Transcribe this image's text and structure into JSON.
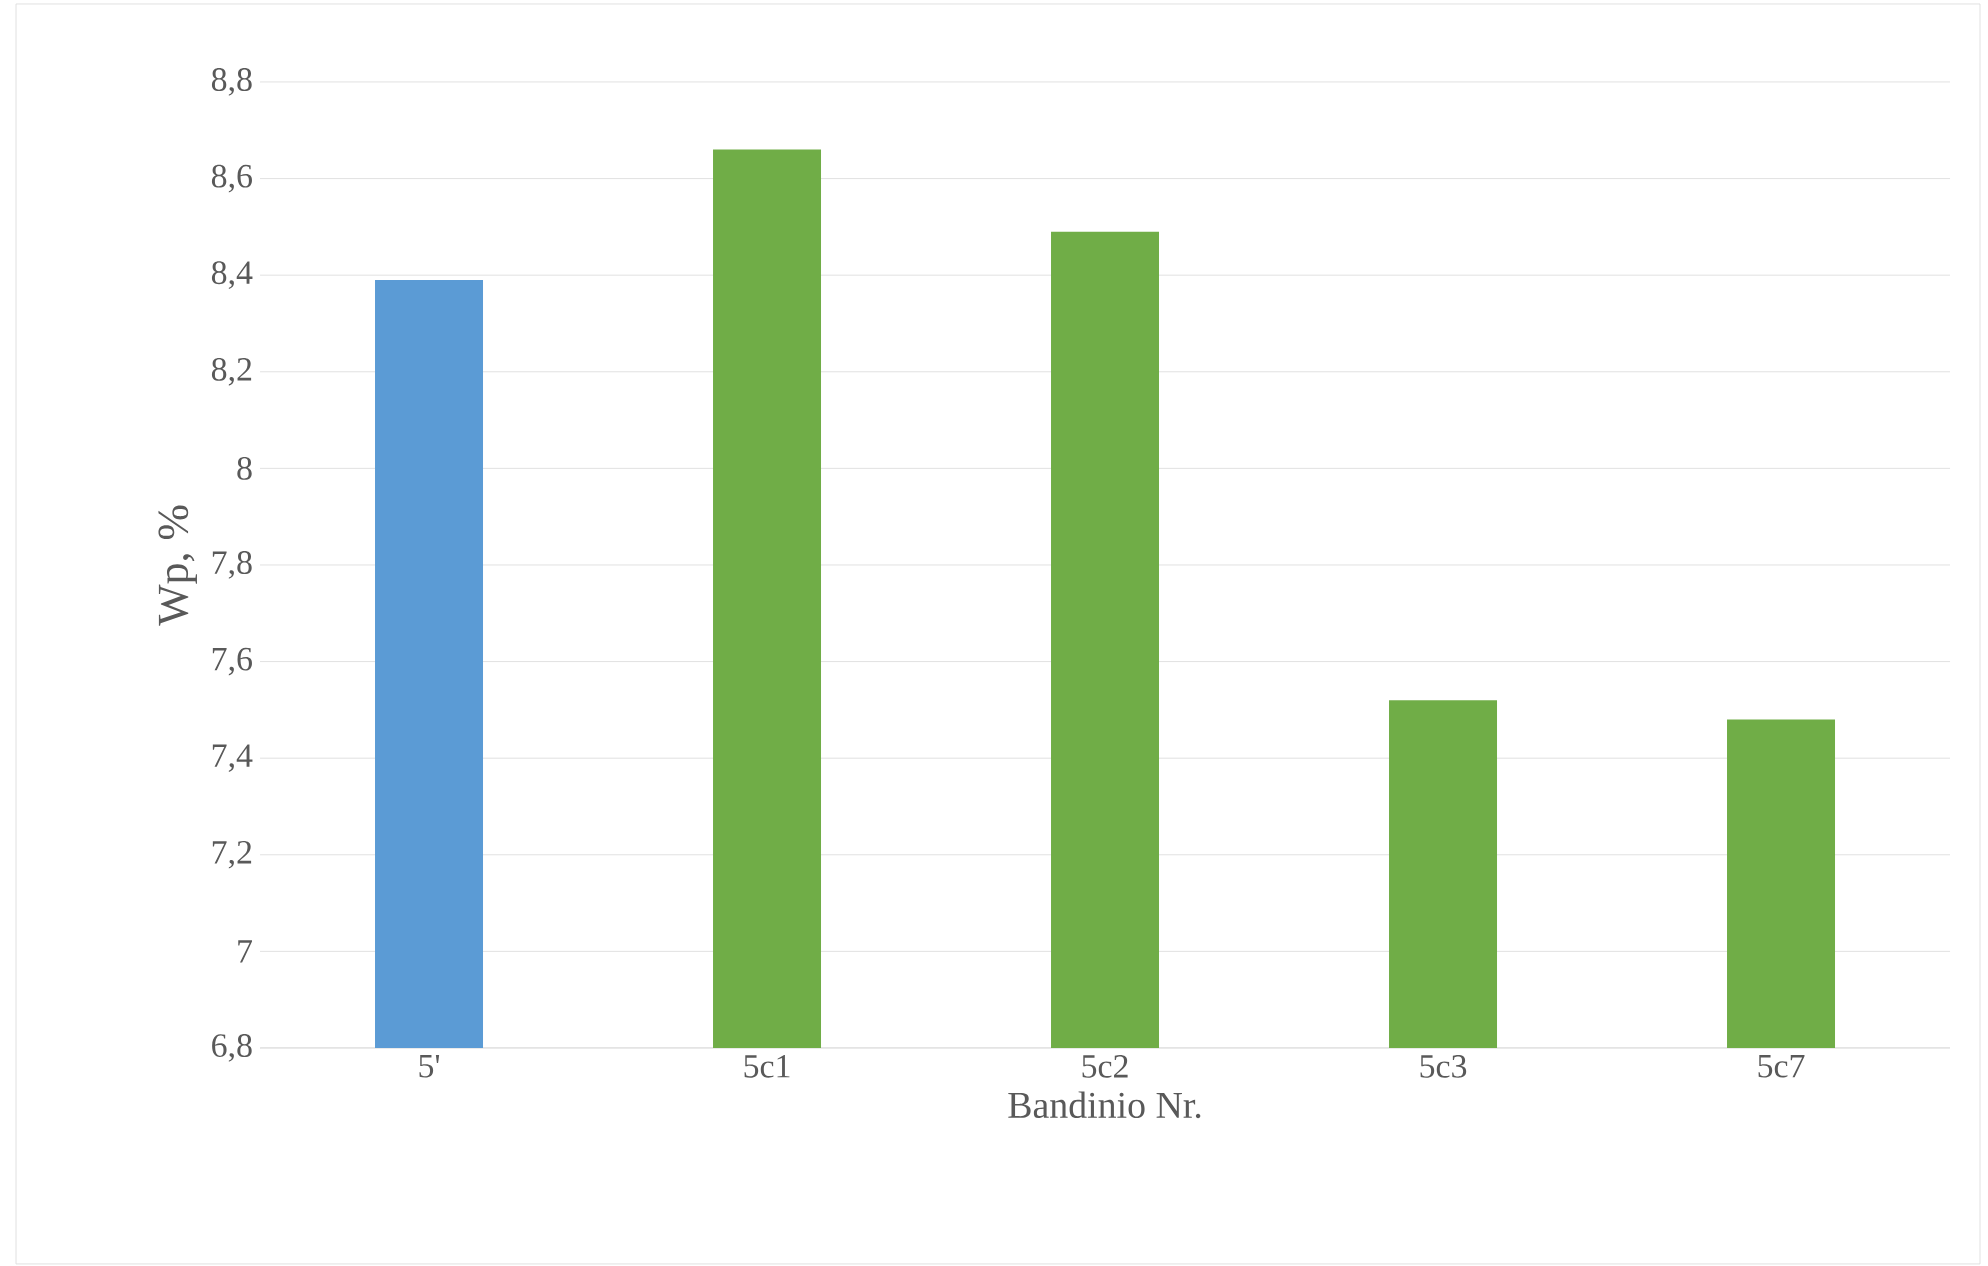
{
  "chart_data": {
    "type": "bar",
    "xlabel": "Bandinio Nr.",
    "ylabel": "Wp, %",
    "categories": [
      "5'",
      "5c1",
      "5c2",
      "5c3",
      "5c7"
    ],
    "values": [
      8.39,
      8.66,
      8.49,
      7.52,
      7.48
    ],
    "colors": [
      "#5b9bd5",
      "#70ad47",
      "#70ad47",
      "#70ad47",
      "#70ad47"
    ],
    "ylim": [
      6.8,
      8.8
    ],
    "yticks": [
      {
        "value": 6.8,
        "label": "6,8"
      },
      7,
      {
        "value": 7.2,
        "label": "7,2"
      },
      {
        "value": 7.4,
        "label": "7,4"
      },
      {
        "value": 7.6,
        "label": "7,6"
      },
      {
        "value": 7.8,
        "label": "7,8"
      },
      8,
      {
        "value": 8.2,
        "label": "8,2"
      },
      {
        "value": 8.4,
        "label": "8,4"
      },
      {
        "value": 8.6,
        "label": "8,6"
      },
      {
        "value": 8.8,
        "label": "8,8"
      }
    ],
    "grid": "y"
  }
}
